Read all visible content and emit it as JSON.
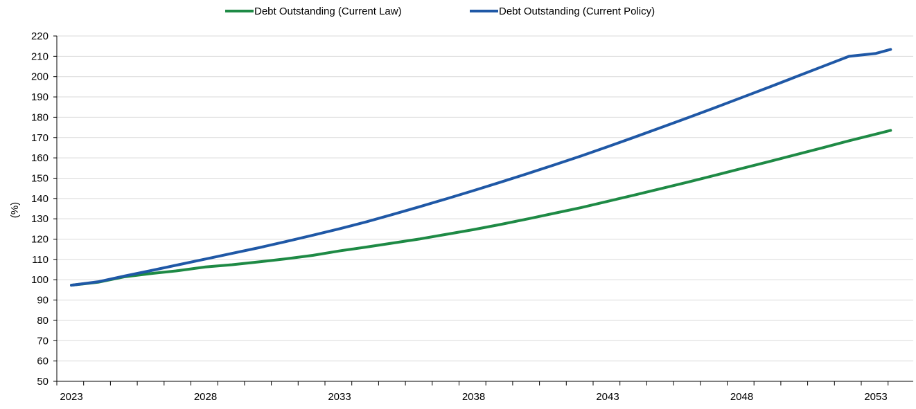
{
  "chart_data": {
    "type": "line",
    "title": "",
    "xlabel": "",
    "ylabel": "(%)",
    "ylim": [
      50,
      220
    ],
    "yticks": [
      50,
      60,
      70,
      80,
      90,
      100,
      110,
      120,
      130,
      140,
      150,
      160,
      170,
      180,
      190,
      200,
      210,
      220
    ],
    "xticks": [
      "2023",
      "2028",
      "2033",
      "2038",
      "2043",
      "2048",
      "2053"
    ],
    "grid": true,
    "legend_position": "top-center",
    "x": [
      2023,
      2024,
      2025,
      2026,
      2027,
      2028,
      2029,
      2030,
      2031,
      2032,
      2033,
      2034,
      2035,
      2036,
      2037,
      2038,
      2039,
      2040,
      2041,
      2042,
      2043,
      2044,
      2045,
      2046,
      2047,
      2048,
      2049,
      2050,
      2051,
      2052,
      2053,
      2054
    ],
    "series": [
      {
        "name": "Debt Outstanding (Current Law)",
        "color": "#1e8a45",
        "values": [
          97.3,
          98.8,
          101.5,
          103.1,
          104.5,
          106.3,
          107.4,
          108.8,
          110.3,
          112.0,
          114.2,
          116.1,
          118.1,
          120.1,
          122.4,
          124.7,
          127.2,
          129.9,
          132.7,
          135.5,
          138.6,
          141.7,
          144.9,
          148.1,
          151.4,
          154.8,
          158.1,
          161.5,
          164.9,
          168.4,
          171.7,
          175.0
        ]
      },
      {
        "name": "Debt Outstanding (Current Policy)",
        "color": "#1f58a6",
        "values": [
          97.3,
          99.0,
          101.9,
          104.6,
          107.4,
          110.2,
          113.0,
          115.8,
          118.8,
          121.9,
          125.1,
          128.5,
          132.2,
          136.0,
          139.9,
          143.9,
          148.0,
          152.2,
          156.5,
          160.9,
          165.5,
          170.2,
          175.0,
          179.8,
          184.7,
          189.7,
          194.7,
          199.8,
          204.9,
          210.0,
          211.4,
          215.0
        ]
      }
    ]
  }
}
